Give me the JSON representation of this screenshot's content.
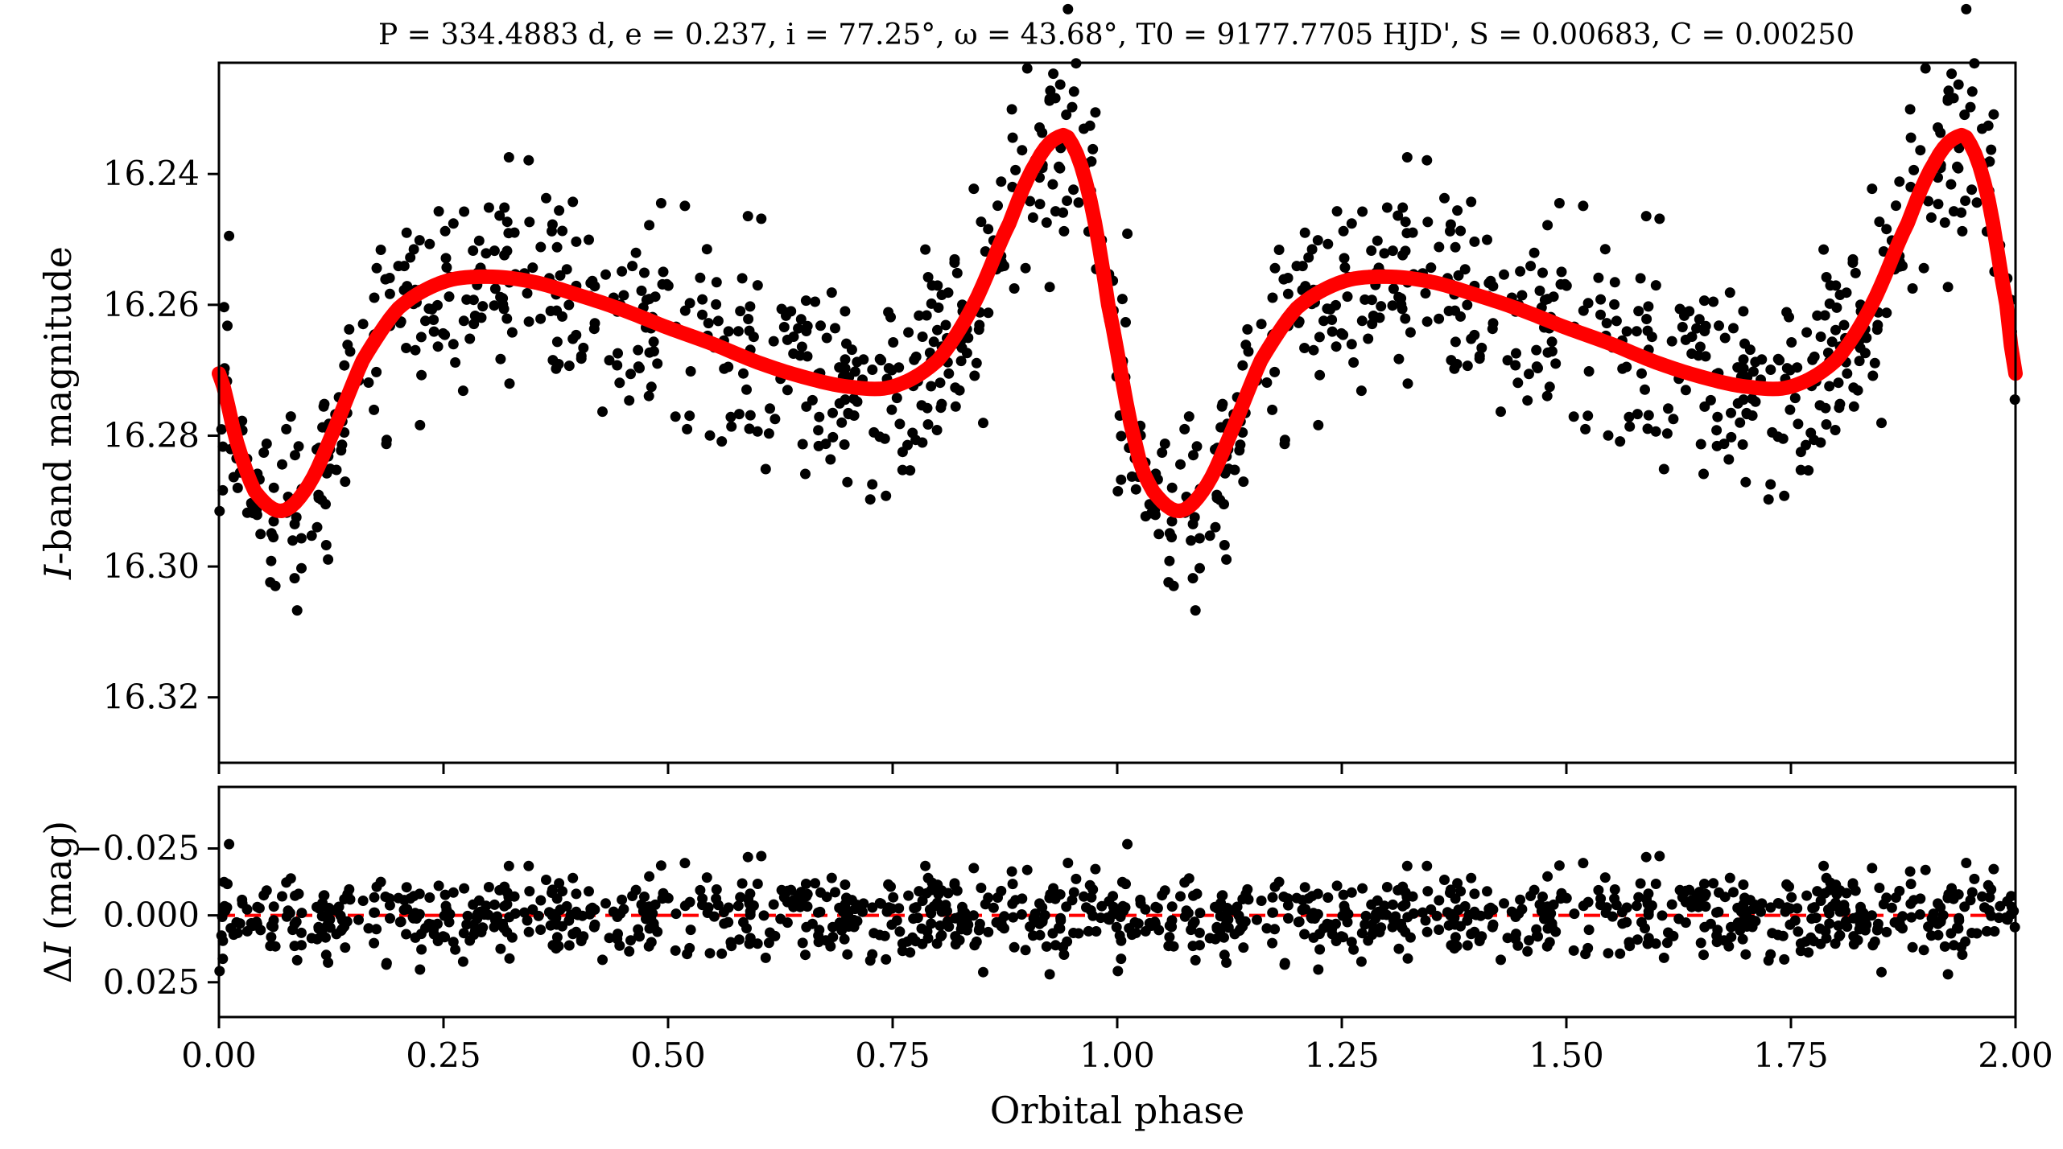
{
  "chart_data": [
    {
      "type": "scatter",
      "panel": "light-curve",
      "title": "P = 334.4883 d, e = 0.237, i = 77.25°, ω = 43.68°, T0 = 9177.7705 HJD', S = 0.00683, C = 0.00250",
      "title_parts": {
        "P": "P = 334.4883 d",
        "e": "e = 0.237",
        "i": "i = 77.25°",
        "omega": "ω = 43.68°",
        "T0": "T0 = 9177.7705 HJD'",
        "S": "S = 0.00683",
        "C": "C = 0.00250"
      },
      "xlabel": "",
      "ylabel": "I-band magnitude",
      "ylabel_parts": {
        "italic": "I",
        "rest": "-band magnitude"
      },
      "xlim": [
        0.0,
        2.0
      ],
      "ylim": [
        16.33,
        16.223
      ],
      "y_inverted": true,
      "yticks": [
        16.24,
        16.26,
        16.28,
        16.3,
        16.32
      ],
      "ytick_labels": [
        "16.24",
        "16.26",
        "16.28",
        "16.30",
        "16.32"
      ],
      "xticks": [
        0.0,
        0.25,
        0.5,
        0.75,
        1.0,
        1.25,
        1.5,
        1.75,
        2.0
      ],
      "grid": false,
      "model_curve": {
        "color": "#ff0000",
        "x": [
          0.0,
          0.02,
          0.04,
          0.07,
          0.1,
          0.13,
          0.16,
          0.2,
          0.25,
          0.3,
          0.35,
          0.4,
          0.45,
          0.5,
          0.55,
          0.6,
          0.65,
          0.7,
          0.75,
          0.8,
          0.84,
          0.88,
          0.91,
          0.935,
          0.95,
          0.97,
          0.99,
          1.02,
          1.04,
          1.07,
          1.1,
          1.13,
          1.16,
          1.2,
          1.25,
          1.3,
          1.35,
          1.4,
          1.45,
          1.5,
          1.55,
          1.6,
          1.65,
          1.7,
          1.75,
          1.8,
          1.84,
          1.88,
          1.91,
          1.935,
          1.95,
          1.97,
          1.99,
          2.0
        ],
        "y": [
          16.2705,
          16.281,
          16.2885,
          16.2915,
          16.2875,
          16.2785,
          16.2685,
          16.2605,
          16.2565,
          16.2557,
          16.2565,
          16.2585,
          16.2608,
          16.2635,
          16.266,
          16.2688,
          16.271,
          16.2725,
          16.2725,
          16.2685,
          16.26,
          16.2475,
          16.2382,
          16.2343,
          16.2355,
          16.244,
          16.26,
          16.281,
          16.2885,
          16.2915,
          16.2875,
          16.2785,
          16.2685,
          16.2605,
          16.2565,
          16.2557,
          16.2565,
          16.2585,
          16.2608,
          16.2635,
          16.266,
          16.2688,
          16.271,
          16.2725,
          16.2725,
          16.2685,
          16.26,
          16.2475,
          16.2382,
          16.2343,
          16.2355,
          16.244,
          16.26,
          16.2705
        ]
      },
      "observations": {
        "color": "#000000",
        "n_points": 1100,
        "x_range": [
          0.0,
          2.0
        ],
        "scatter_mag": 0.009,
        "note": "points scatter about the model curve with the same residuals repeated in each unit of phase"
      }
    },
    {
      "type": "scatter",
      "panel": "residuals",
      "xlabel": "Orbital phase",
      "ylabel": "ΔI (mag)",
      "ylabel_parts": {
        "delta": "Δ",
        "italic": "I",
        "rest": " (mag)"
      },
      "xlim": [
        0.0,
        2.0
      ],
      "ylim": [
        0.038,
        -0.048
      ],
      "y_inverted": true,
      "yticks": [
        -0.025,
        0.0,
        0.025
      ],
      "ytick_labels": [
        "−0.025",
        "0.000",
        "0.025"
      ],
      "xticks": [
        0.0,
        0.25,
        0.5,
        0.75,
        1.0,
        1.25,
        1.5,
        1.75,
        2.0
      ],
      "xtick_labels": [
        "0.00",
        "0.25",
        "0.50",
        "0.75",
        "1.00",
        "1.25",
        "1.50",
        "1.75",
        "2.00"
      ],
      "zero_line": {
        "y": 0.0,
        "color": "#ff0000",
        "style": "dashed"
      },
      "grid": false
    }
  ],
  "colors": {
    "model": "#ff0000",
    "points": "#000000",
    "zero_line": "#ff0000"
  }
}
